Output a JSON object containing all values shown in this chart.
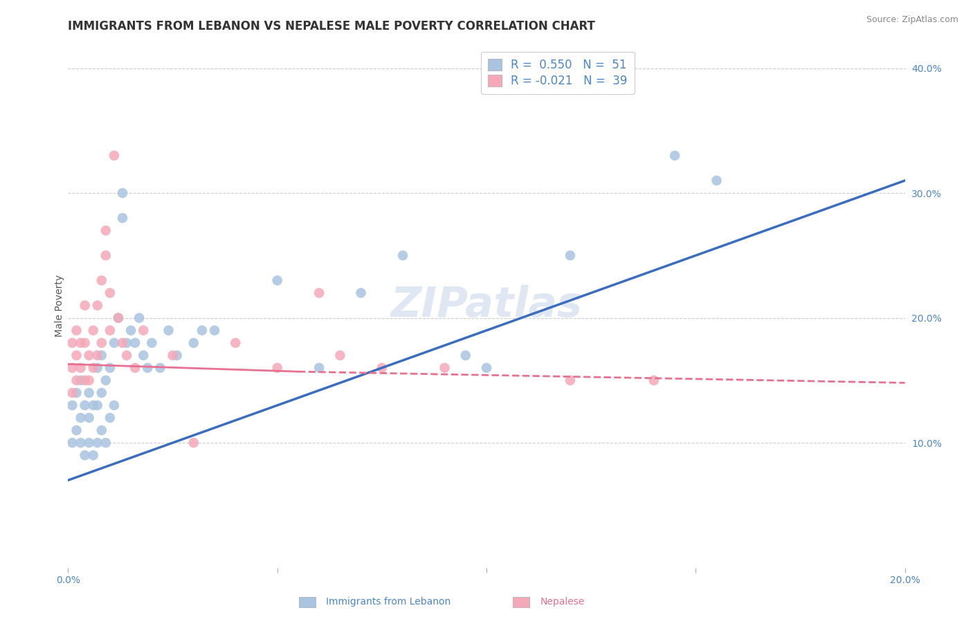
{
  "title": "IMMIGRANTS FROM LEBANON VS NEPALESE MALE POVERTY CORRELATION CHART",
  "source": "Source: ZipAtlas.com",
  "xlabel_blue": "Immigrants from Lebanon",
  "xlabel_pink": "Nepalese",
  "ylabel": "Male Poverty",
  "xlim": [
    0.0,
    0.2
  ],
  "ylim": [
    0.0,
    0.42
  ],
  "xticks": [
    0.0,
    0.05,
    0.1,
    0.15,
    0.2
  ],
  "xticklabels_visible": [
    "0.0%",
    "",
    "",
    "",
    "20.0%"
  ],
  "yticks_right": [
    0.1,
    0.2,
    0.3,
    0.4
  ],
  "ytick_labels_right": [
    "10.0%",
    "20.0%",
    "30.0%",
    "40.0%"
  ],
  "legend_blue_R": "0.550",
  "legend_blue_N": "51",
  "legend_pink_R": "-0.021",
  "legend_pink_N": "39",
  "blue_color": "#a8c4e0",
  "pink_color": "#f4a8b8",
  "blue_line_color": "#3a6dbf",
  "pink_line_color": "#e87090",
  "pink_line_solid_color": "#e87090",
  "watermark": "ZIPatlas",
  "blue_scatter_x": [
    0.001,
    0.001,
    0.002,
    0.002,
    0.003,
    0.003,
    0.003,
    0.004,
    0.004,
    0.005,
    0.005,
    0.005,
    0.006,
    0.006,
    0.007,
    0.007,
    0.007,
    0.008,
    0.008,
    0.008,
    0.009,
    0.009,
    0.01,
    0.01,
    0.011,
    0.011,
    0.012,
    0.013,
    0.013,
    0.014,
    0.015,
    0.016,
    0.017,
    0.018,
    0.019,
    0.02,
    0.022,
    0.024,
    0.026,
    0.03,
    0.032,
    0.035,
    0.05,
    0.06,
    0.07,
    0.08,
    0.095,
    0.1,
    0.12,
    0.145,
    0.155
  ],
  "blue_scatter_y": [
    0.1,
    0.13,
    0.11,
    0.14,
    0.1,
    0.12,
    0.15,
    0.09,
    0.13,
    0.1,
    0.12,
    0.14,
    0.09,
    0.13,
    0.1,
    0.13,
    0.16,
    0.11,
    0.14,
    0.17,
    0.1,
    0.15,
    0.12,
    0.16,
    0.13,
    0.18,
    0.2,
    0.28,
    0.3,
    0.18,
    0.19,
    0.18,
    0.2,
    0.17,
    0.16,
    0.18,
    0.16,
    0.19,
    0.17,
    0.18,
    0.19,
    0.19,
    0.23,
    0.16,
    0.22,
    0.25,
    0.17,
    0.16,
    0.25,
    0.33,
    0.31
  ],
  "pink_scatter_x": [
    0.001,
    0.001,
    0.001,
    0.002,
    0.002,
    0.002,
    0.003,
    0.003,
    0.004,
    0.004,
    0.004,
    0.005,
    0.005,
    0.006,
    0.006,
    0.007,
    0.007,
    0.008,
    0.008,
    0.009,
    0.009,
    0.01,
    0.01,
    0.011,
    0.012,
    0.013,
    0.014,
    0.016,
    0.018,
    0.025,
    0.03,
    0.04,
    0.05,
    0.06,
    0.065,
    0.075,
    0.09,
    0.12,
    0.14
  ],
  "pink_scatter_y": [
    0.14,
    0.16,
    0.18,
    0.15,
    0.17,
    0.19,
    0.16,
    0.18,
    0.15,
    0.18,
    0.21,
    0.15,
    0.17,
    0.16,
    0.19,
    0.17,
    0.21,
    0.18,
    0.23,
    0.25,
    0.27,
    0.19,
    0.22,
    0.33,
    0.2,
    0.18,
    0.17,
    0.16,
    0.19,
    0.17,
    0.1,
    0.18,
    0.16,
    0.22,
    0.17,
    0.16,
    0.16,
    0.15,
    0.15
  ],
  "grid_color": "#cccccc",
  "background_color": "#ffffff",
  "title_fontsize": 12,
  "axis_label_fontsize": 10,
  "tick_fontsize": 10,
  "legend_fontsize": 12,
  "watermark_fontsize": 44,
  "watermark_color": "#c8d8ea",
  "watermark_alpha": 0.6,
  "blue_line_x0": 0.0,
  "blue_line_y0": 0.07,
  "blue_line_x1": 0.2,
  "blue_line_y1": 0.31,
  "pink_line_solid_x0": 0.0,
  "pink_line_solid_y0": 0.163,
  "pink_line_solid_x1": 0.055,
  "pink_line_solid_y1": 0.157,
  "pink_line_dash_x0": 0.055,
  "pink_line_dash_y0": 0.157,
  "pink_line_dash_x1": 0.2,
  "pink_line_dash_y1": 0.148
}
